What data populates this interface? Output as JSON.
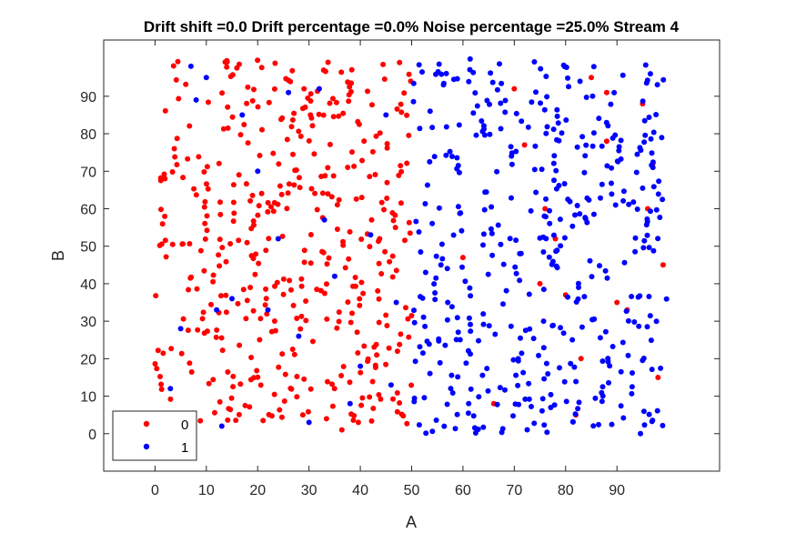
{
  "chart_data": {
    "type": "scatter",
    "title": "Drift shift =0.0 Drift percentage =0.0% Noise percentage =25.0% Stream 4",
    "xlabel": "A",
    "ylabel": "B",
    "xlim": [
      -10,
      110
    ],
    "ylim": [
      -10,
      105
    ],
    "xticks": [
      0,
      10,
      20,
      30,
      40,
      50,
      60,
      70,
      80,
      90
    ],
    "yticks": [
      0,
      10,
      20,
      30,
      40,
      50,
      60,
      70,
      80,
      90
    ],
    "legend_position": "bottom-left",
    "grid": false,
    "series": [
      {
        "name": "0",
        "color": "#ff0000",
        "seed": 11,
        "count": 440,
        "x_range": [
          0,
          50
        ],
        "y_range": [
          0,
          100
        ],
        "noise_points": [
          [
            70,
            92
          ],
          [
            76,
            60
          ],
          [
            80,
            37
          ],
          [
            85,
            95
          ],
          [
            88,
            78
          ],
          [
            90,
            35
          ],
          [
            92,
            33
          ],
          [
            95,
            88
          ],
          [
            96,
            60
          ],
          [
            97,
            72
          ],
          [
            98,
            15
          ],
          [
            78,
            52
          ],
          [
            66,
            8
          ],
          [
            72,
            77
          ],
          [
            82,
            5
          ],
          [
            60,
            47
          ],
          [
            88,
            91
          ],
          [
            75,
            40
          ],
          [
            83,
            20
          ],
          [
            99,
            45
          ]
        ]
      },
      {
        "name": "1",
        "color": "#0000ff",
        "seed": 29,
        "count": 440,
        "x_range": [
          50,
          100
        ],
        "y_range": [
          0,
          100
        ],
        "noise_points": [
          [
            7,
            98
          ],
          [
            10,
            95
          ],
          [
            8,
            89
          ],
          [
            12,
            33
          ],
          [
            15,
            36
          ],
          [
            17,
            85
          ],
          [
            22,
            33
          ],
          [
            24,
            52
          ],
          [
            26,
            91
          ],
          [
            28,
            26
          ],
          [
            30,
            3
          ],
          [
            32,
            92
          ],
          [
            35,
            42
          ],
          [
            38,
            8
          ],
          [
            40,
            18
          ],
          [
            42,
            53
          ],
          [
            45,
            85
          ],
          [
            47,
            35
          ],
          [
            46,
            13
          ],
          [
            5,
            28
          ],
          [
            13,
            2
          ],
          [
            33,
            57
          ],
          [
            20,
            70
          ],
          [
            3,
            12
          ]
        ]
      }
    ]
  }
}
